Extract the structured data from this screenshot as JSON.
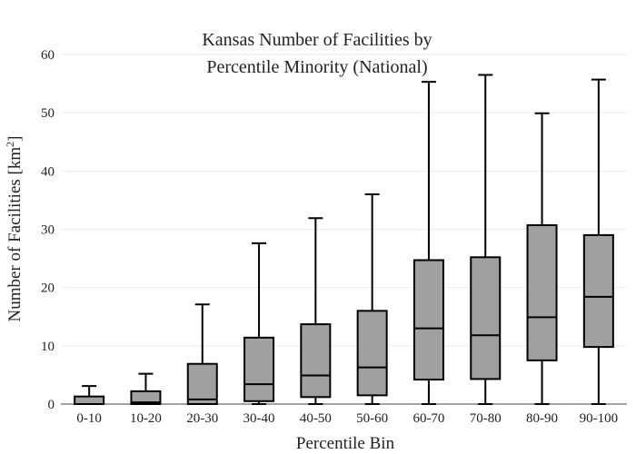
{
  "chart_data": {
    "type": "box",
    "title": [
      "Kansas Number of Facilities by",
      "Percentile Minority (National)"
    ],
    "xlabel": "Percentile Bin",
    "ylabel": "Number of Facilities",
    "ylabel_unit_base": "km",
    "ylabel_unit_exp": "2",
    "ylim": [
      0,
      60
    ],
    "yticks": [
      0,
      10,
      20,
      30,
      40,
      50,
      60
    ],
    "grid": true,
    "categories": [
      "0-10",
      "10-20",
      "20-30",
      "30-40",
      "40-50",
      "50-60",
      "60-70",
      "70-80",
      "80-90",
      "90-100"
    ],
    "boxes": [
      {
        "min": 0,
        "q1": 0,
        "median": 0,
        "q3": 1.3,
        "max": 3.1
      },
      {
        "min": 0,
        "q1": 0,
        "median": 0.3,
        "q3": 2.2,
        "max": 5.2
      },
      {
        "min": 0,
        "q1": 0,
        "median": 0.8,
        "q3": 6.9,
        "max": 17.1
      },
      {
        "min": 0,
        "q1": 0.5,
        "median": 3.4,
        "q3": 11.4,
        "max": 27.6
      },
      {
        "min": 0,
        "q1": 1.2,
        "median": 4.9,
        "q3": 13.7,
        "max": 31.9
      },
      {
        "min": 0,
        "q1": 1.5,
        "median": 6.3,
        "q3": 16.0,
        "max": 36.0
      },
      {
        "min": 0,
        "q1": 4.2,
        "median": 13.0,
        "q3": 24.7,
        "max": 55.3
      },
      {
        "min": 0,
        "q1": 4.3,
        "median": 11.8,
        "q3": 25.2,
        "max": 56.5
      },
      {
        "min": 0,
        "q1": 7.5,
        "median": 14.9,
        "q3": 30.7,
        "max": 49.9
      },
      {
        "min": 0,
        "q1": 9.8,
        "median": 18.4,
        "q3": 29.0,
        "max": 55.7
      }
    ],
    "colors": {
      "box_fill": "#a0a0a0",
      "box_stroke": "#000000"
    }
  }
}
